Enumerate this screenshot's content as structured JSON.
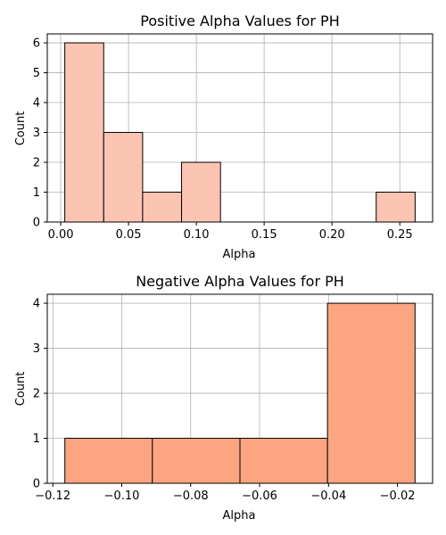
{
  "chart_data": [
    {
      "type": "bar",
      "title": "Positive Alpha Values for PH",
      "xlabel": "Alpha",
      "ylabel": "Count",
      "bin_edges": [
        0.003,
        0.0317,
        0.0604,
        0.0891,
        0.1178,
        0.1465,
        0.1752,
        0.2039,
        0.2326,
        0.2613
      ],
      "values": [
        6,
        3,
        1,
        2,
        0,
        0,
        0,
        0,
        1
      ],
      "xlim": [
        -0.0099,
        0.2742
      ],
      "ylim": [
        0,
        6.3
      ],
      "xticks": [
        0.0,
        0.05,
        0.1,
        0.15,
        0.2,
        0.25
      ],
      "xtick_labels": [
        "0.00",
        "0.05",
        "0.10",
        "0.15",
        "0.20",
        "0.25"
      ],
      "yticks": [
        0,
        1,
        2,
        3,
        4,
        5,
        6
      ],
      "ytick_labels": [
        "0",
        "1",
        "2",
        "3",
        "4",
        "5",
        "6"
      ],
      "grid": true,
      "bar_color": "#fcc5b3"
    },
    {
      "type": "bar",
      "title": "Negative Alpha Values for PH",
      "xlabel": "Alpha",
      "ylabel": "Count",
      "bin_edges": [
        -0.1165,
        -0.0911,
        -0.0657,
        -0.0403,
        -0.0149
      ],
      "values": [
        1,
        1,
        1,
        4
      ],
      "xlim": [
        -0.1216,
        -0.0098
      ],
      "ylim": [
        0,
        4.2
      ],
      "xticks": [
        -0.12,
        -0.1,
        -0.08,
        -0.06,
        -0.04,
        -0.02
      ],
      "xtick_labels": [
        "−0.12",
        "−0.10",
        "−0.08",
        "−0.06",
        "−0.04",
        "−0.02"
      ],
      "yticks": [
        0,
        1,
        2,
        3,
        4
      ],
      "ytick_labels": [
        "0",
        "1",
        "2",
        "3",
        "4"
      ],
      "grid": true,
      "bar_color": "#fca583"
    }
  ]
}
